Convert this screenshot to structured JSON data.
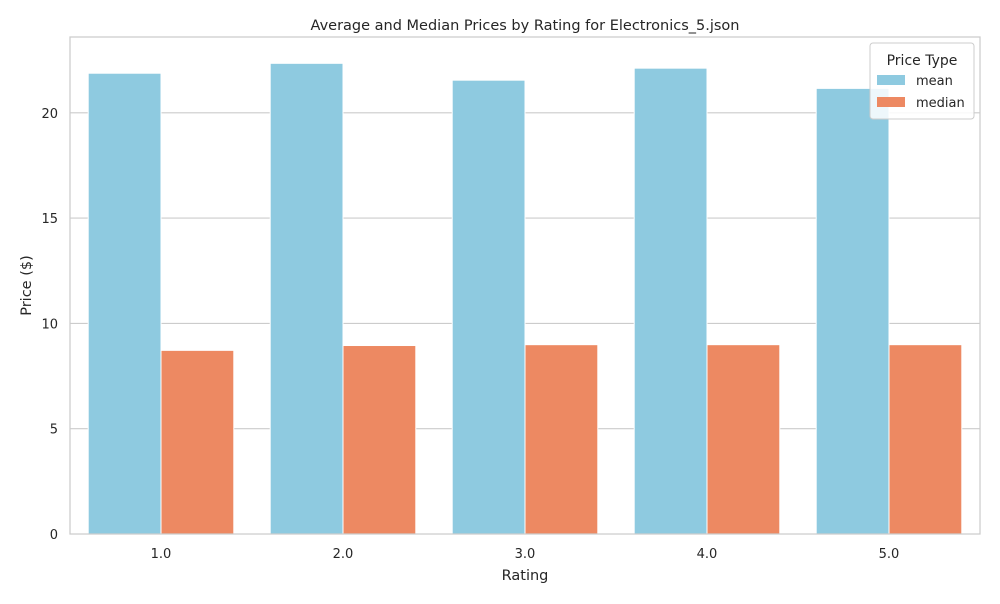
{
  "chart_data": {
    "type": "bar",
    "title": "Average and Median Prices by Rating for Electronics_5.json",
    "xlabel": "Rating",
    "ylabel": "Price ($)",
    "categories": [
      "1.0",
      "2.0",
      "3.0",
      "4.0",
      "5.0"
    ],
    "series": [
      {
        "name": "mean",
        "values": [
          21.88,
          22.35,
          21.55,
          22.12,
          21.16
        ]
      },
      {
        "name": "median",
        "values": [
          8.72,
          8.95,
          8.99,
          8.99,
          8.99
        ]
      }
    ],
    "ylim": [
      0,
      23.6
    ],
    "yticks": [
      0,
      5,
      10,
      15,
      20
    ],
    "grid": "y",
    "legend": {
      "title": "Price Type",
      "position": "top-right"
    },
    "colors": [
      "#8ecae0",
      "#ed8962"
    ]
  }
}
